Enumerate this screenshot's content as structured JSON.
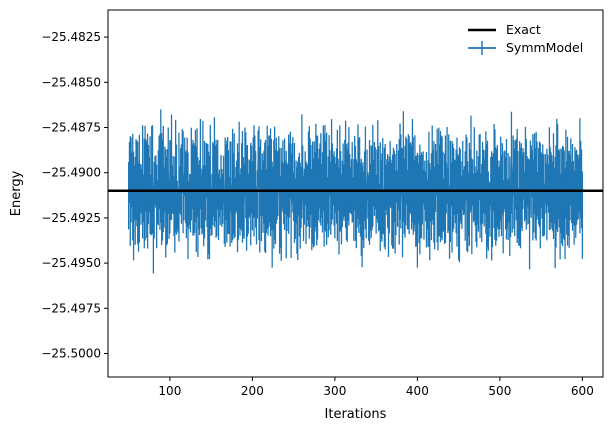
{
  "chart_data": {
    "type": "line",
    "title": "",
    "xlabel": "Iterations",
    "ylabel": "Energy",
    "xlim": [
      25,
      625
    ],
    "ylim": [
      -25.5013,
      -25.481
    ],
    "xticks": [
      100,
      200,
      300,
      400,
      500,
      600
    ],
    "xtick_labels": [
      "100",
      "200",
      "300",
      "400",
      "500",
      "600"
    ],
    "yticks": [
      -25.5,
      -25.4975,
      -25.495,
      -25.4925,
      -25.49,
      -25.4875,
      -25.485,
      -25.4825
    ],
    "ytick_labels": [
      "−25.5000",
      "−25.4975",
      "−25.4950",
      "−25.4925",
      "−25.4900",
      "−25.4875",
      "−25.4850",
      "−25.4825"
    ],
    "grid": false,
    "legend_position": "top-right",
    "series": [
      {
        "name": "Exact",
        "kind": "hline",
        "y": -25.491,
        "color": "#000000"
      },
      {
        "name": "SymmModel",
        "kind": "errorbar_line",
        "color": "#1f77b4",
        "x_start": 50,
        "x_end": 600,
        "x_step": 1,
        "center": -25.491,
        "spread": 0.00085,
        "error": 0.0022,
        "noise_seed": 7
      }
    ]
  },
  "legend": {
    "items": [
      {
        "label": "Exact",
        "color": "#000000"
      },
      {
        "label": "SymmModel",
        "color": "#1f77b4"
      }
    ]
  }
}
